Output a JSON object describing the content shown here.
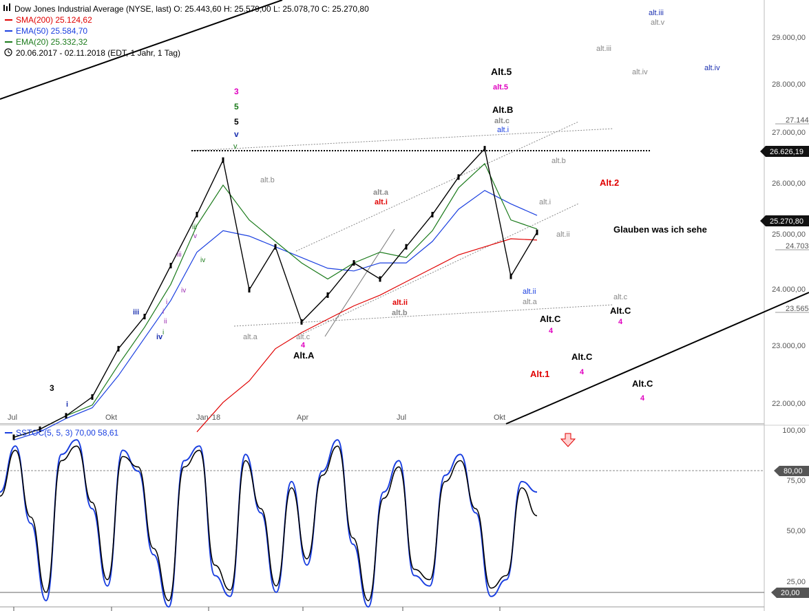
{
  "header": {
    "title_line": "Dow Jones Industrial Average (NYSE, last)  O: 25.443,60  H: 25.579,00  L: 25.078,70  C: 25.270,80",
    "sma200": "SMA(200)  25.124,62",
    "ema50": "EMA(50)  25.584,70",
    "ema20": "EMA(20)  25.332,32",
    "range": "20.06.2017 - 02.11.2018  (EDT, 1 Jahr, 1 Tag)"
  },
  "colors": {
    "sma200": "#e00000",
    "ema50": "#1a3fe0",
    "ema20": "#1a7a1a",
    "price": "#000000",
    "stoch_k": "#1a3fe0",
    "stoch_d": "#000000",
    "magenta": "#e000c0",
    "red": "#e00000",
    "gray": "#888888",
    "navy": "#1a2fb0"
  },
  "price_axis": [
    "29.000,00",
    "28.000,00",
    "27.000,00",
    "26.000,00",
    "25.000,00",
    "24.000,00",
    "23.000,00",
    "22.000,00"
  ],
  "price_flags": {
    "level": "26.626,19",
    "close": "25.270,80",
    "partial_top": "27.144",
    "partial_mid": "24.703",
    "partial_low": "23.565"
  },
  "x_axis": [
    "Jul",
    "Okt",
    "Jan '18",
    "Apr",
    "Jul",
    "Okt"
  ],
  "stoch": {
    "title": "SSTOC(5, 5, 3)  70,00  58,61",
    "axis": [
      "100,00",
      "75,00",
      "50,00",
      "25,00"
    ],
    "flag_80": "80,00",
    "flag_20": "20,00"
  },
  "annotations": {
    "left_3": "3",
    "left_i": "i",
    "iii_blue": "iii",
    "iv_blue": "iv",
    "i_small": "i",
    "ii_small": "ii",
    "iii_purple": "iii",
    "iv_purple": "iv",
    "iii_green": "iii",
    "v_purple": "v",
    "iv_green": "iv",
    "top_3": "3",
    "top_5": "5",
    "top_5b": "5",
    "top_v_blue": "v",
    "top_v_green": "v",
    "alt_b_gray": "alt.b",
    "alt_a_gray": "alt.a",
    "alt_c_gray": "alt.c",
    "four_a": "4",
    "Alt_A": "Alt.A",
    "alt_a_mid": "alt.a",
    "alt_i_red": "alt.i",
    "alt_ii_red": "alt.ii",
    "alt_b_mid": "alt.b",
    "Alt_5": "Alt.5",
    "alt5_mag": "alt.5",
    "Alt_B": "Alt.B",
    "alt_c_top": "alt.c",
    "alt_i_blue": "alt.i",
    "alt_b_right": "alt.b",
    "alt_i_right": "alt.i",
    "alt_ii_right": "alt.ii",
    "alt_ii_blue": "alt.ii",
    "alt_a_right": "alt.a",
    "Alt_2": "Alt.2",
    "Glauben": "Glauben was ich sehe",
    "alt_c_far": "alt.c",
    "Alt_C1": "Alt.C",
    "four_c1": "4",
    "Alt_C2": "Alt.C",
    "four_c2": "4",
    "Alt_C3": "Alt.C",
    "four_c3": "4",
    "Alt_C4": "Alt.C",
    "four_c4": "4",
    "Alt_1": "Alt.1",
    "alt_iii_top_gray": "alt.iii",
    "alt_iii_blue": "alt.iii",
    "alt_v_gray": "alt.v",
    "alt_iv_gray": "alt.iv",
    "alt_iv_blue": "alt.iv"
  },
  "chart_data": [
    {
      "type": "line",
      "title": "Dow Jones Industrial Average (NYSE, last)",
      "x": [
        "2017-06-20",
        "2017-07",
        "2017-08",
        "2017-09",
        "2017-10",
        "2017-11",
        "2017-12",
        "2018-01",
        "2018-01-26",
        "2018-02-08",
        "2018-03",
        "2018-03-23",
        "2018-04",
        "2018-05",
        "2018-06",
        "2018-07",
        "2018-08",
        "2018-09",
        "2018-10-03",
        "2018-10-29",
        "2018-11-02"
      ],
      "series": [
        {
          "name": "SMA(200)",
          "values": [
            null,
            null,
            null,
            null,
            null,
            null,
            null,
            21550,
            22100,
            22500,
            23100,
            23400,
            23650,
            23900,
            24100,
            24350,
            24600,
            24850,
            25000,
            25150,
            25125
          ]
        },
        {
          "name": "EMA(50)",
          "values": [
            21400,
            21550,
            21800,
            22000,
            22600,
            23300,
            24000,
            24900,
            25300,
            25200,
            25000,
            24800,
            24600,
            24550,
            24700,
            24700,
            25100,
            25700,
            26050,
            25800,
            25585
          ]
        },
        {
          "name": "EMA(20)",
          "values": [
            21450,
            21600,
            21850,
            22050,
            22800,
            23500,
            24300,
            25400,
            26150,
            25500,
            25100,
            24700,
            24400,
            24700,
            24900,
            24800,
            25300,
            26100,
            26550,
            25500,
            25332
          ]
        },
        {
          "name": "Close",
          "values": [
            21450,
            21600,
            21850,
            22200,
            23100,
            23700,
            24650,
            25600,
            26616,
            24200,
            25000,
            23600,
            24100,
            24700,
            24400,
            25000,
            25600,
            26300,
            26828,
            24450,
            25271
          ]
        }
      ],
      "ylim": [
        21700,
        29600
      ],
      "resistance": 26626.19,
      "last_close": 25270.8
    },
    {
      "type": "line",
      "title": "SSTOC(5, 5, 3)",
      "series": [
        {
          "name": "%K",
          "values": [
            70,
            92,
            55,
            18,
            88,
            95,
            62,
            25,
            90,
            80,
            40,
            15,
            85,
            92,
            30,
            20,
            88,
            60,
            22,
            75,
            35,
            80,
            95,
            45,
            15,
            70,
            85,
            30,
            25,
            78,
            88,
            60,
            20,
            28,
            75,
            70
          ]
        },
        {
          "name": "%D",
          "values": [
            68,
            90,
            58,
            22,
            85,
            92,
            65,
            28,
            87,
            82,
            43,
            18,
            82,
            90,
            35,
            23,
            85,
            62,
            25,
            72,
            38,
            78,
            92,
            48,
            18,
            67,
            82,
            33,
            28,
            75,
            85,
            62,
            24,
            30,
            72,
            58.61
          ]
        }
      ],
      "ylim": [
        15,
        100
      ],
      "levels": [
        80,
        20
      ]
    }
  ]
}
